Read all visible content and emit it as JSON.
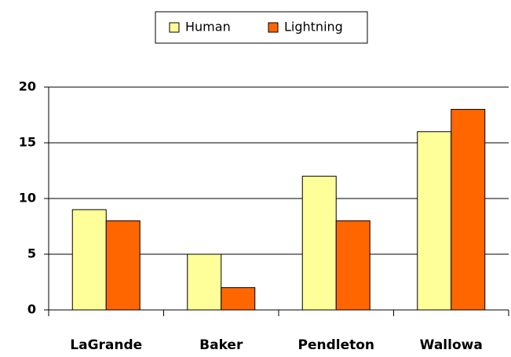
{
  "chart_data": {
    "type": "bar",
    "categories": [
      "LaGrande",
      "Baker",
      "Pendleton",
      "Wallowa"
    ],
    "series": [
      {
        "name": "Human",
        "color": "#ffff99",
        "values": [
          9,
          5,
          12,
          16
        ]
      },
      {
        "name": "Lightning",
        "color": "#ff6600",
        "values": [
          8,
          2,
          8,
          18
        ]
      }
    ],
    "ylim": [
      0,
      20
    ],
    "yticks": [
      0,
      5,
      10,
      15,
      20
    ],
    "grid": true,
    "legend": "top"
  }
}
